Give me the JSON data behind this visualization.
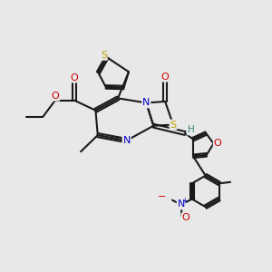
{
  "bg_color": "#e8e8e8",
  "bond_color": "#1a1a1a",
  "bond_width": 1.5,
  "atom_colors": {
    "S": "#b8a000",
    "N": "#0000cc",
    "O": "#cc0000",
    "H": "#3a8888",
    "C_default": "#1a1a1a",
    "N_plus": "#0000cc",
    "O_minus": "#cc0000"
  },
  "figsize": [
    3.0,
    3.0
  ],
  "dpi": 100
}
